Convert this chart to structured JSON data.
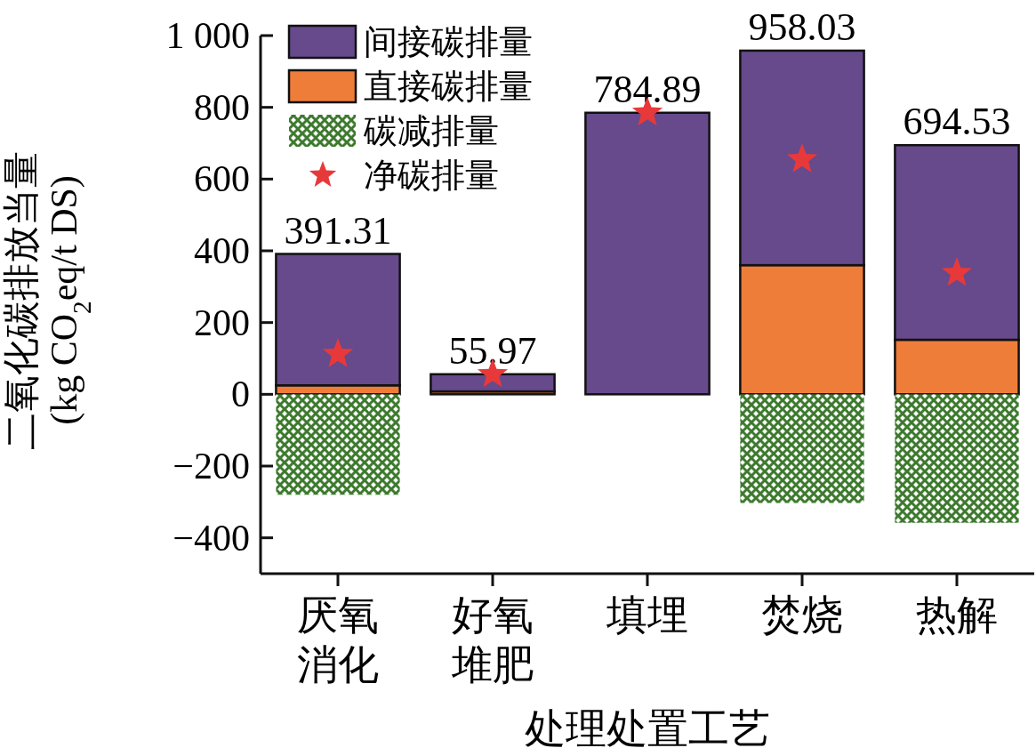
{
  "chart_data": {
    "type": "bar",
    "stacked": true,
    "categories": [
      "厌氧消化",
      "好氧堆肥",
      "填埋",
      "焚烧",
      "热解"
    ],
    "xlabel": "处理处置工艺",
    "ylabel": "二氧化碳排放当量\n(kg CO$_{2}$eq/t DS)",
    "ylim": [
      -500,
      1000
    ],
    "yticks": [
      {
        "value": -400,
        "label": "−400"
      },
      {
        "value": -200,
        "label": "−200"
      },
      0,
      200,
      400,
      600,
      800,
      {
        "value": 1000,
        "label": "1 000"
      }
    ],
    "legend": "top left",
    "series": [
      {
        "name": "直接碳排量",
        "color": "#ef7d3a",
        "values": [
          25,
          8,
          0,
          360,
          152
        ]
      },
      {
        "name": "间接碳排量",
        "color": "#664a8c",
        "values": [
          366.31,
          47.97,
          784.89,
          598.03,
          542.53
        ]
      },
      {
        "name": "碳减排量",
        "color": "#3d7a2e",
        "values": [
          -280,
          null,
          null,
          -303,
          -358
        ]
      },
      {
        "name": "净碳排量",
        "type": "scatter",
        "marker": "star",
        "color": "#e8393a",
        "values": [
          112,
          56,
          785,
          655,
          338
        ]
      }
    ],
    "annotations": [
      {
        "text": "391.31",
        "x": "厌氧消化",
        "y": 391.31
      },
      {
        "text": "55.97",
        "x": "好氧堆肥",
        "y": 55.97
      },
      {
        "text": "784.89",
        "x": "填埋",
        "y": 784.89
      },
      {
        "text": "958.03",
        "x": "焚烧",
        "y": 958.03
      },
      {
        "text": "694.53",
        "x": "热解",
        "y": 694.53
      }
    ]
  }
}
